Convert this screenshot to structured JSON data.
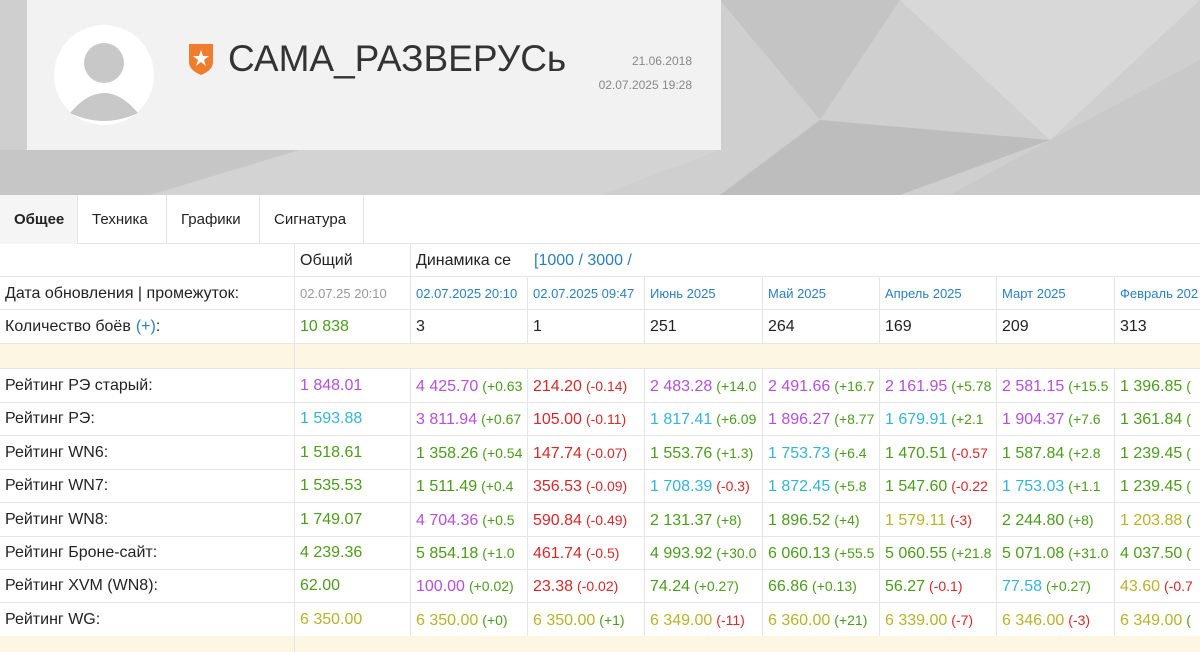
{
  "header": {
    "name": "САМА_РАЗВЕРУСь",
    "dates": [
      "21.06.2018",
      "02.07.2025 19:28"
    ]
  },
  "tabs": [
    "Общее",
    "Техника",
    "Графики",
    "Сигнатура"
  ],
  "colors": {
    "p": "#b54fdc",
    "r": "#d7282a",
    "g": "#4c9c1c",
    "c": "#35b4d8",
    "y": "#bab12a",
    "link": "#2a7fc0",
    "muted": "#999999"
  },
  "table": {
    "head": [
      "Общий",
      "Динамика се",
      "[1000 / 3000 /"
    ],
    "dates_label": "Дата обновления | промежуток:",
    "dates": [
      "02.07.25 20:10",
      "02.07.2025 20:10",
      "02.07.2025 09:47",
      "Июнь 2025",
      "Май 2025",
      "Апрель 2025",
      "Март 2025",
      "Февраль 202"
    ],
    "battles_label": "Количество боёв",
    "battles_link": "(+)",
    "battles_suffix": ":",
    "battles": [
      "10 838",
      "3",
      "1",
      "251",
      "264",
      "169",
      "209",
      "313"
    ],
    "rows": [
      {
        "label": "Рейтинг РЭ старый:",
        "cells": [
          {
            "v": "1 848.01",
            "c": "p"
          },
          {
            "v": "4 425.70",
            "c": "p",
            "d": "(+0.63",
            "dc": "g"
          },
          {
            "v": "214.20",
            "c": "r",
            "d": "(-0.14)",
            "dc": "r"
          },
          {
            "v": "2 483.28",
            "c": "p",
            "d": "(+14.0",
            "dc": "g"
          },
          {
            "v": "2 491.66",
            "c": "p",
            "d": "(+16.7",
            "dc": "g"
          },
          {
            "v": "2 161.95",
            "c": "p",
            "d": "(+5.78",
            "dc": "g"
          },
          {
            "v": "2 581.15",
            "c": "p",
            "d": "(+15.5",
            "dc": "g"
          },
          {
            "v": "1 396.85",
            "c": "g",
            "d": "(",
            "dc": "g"
          }
        ]
      },
      {
        "label": "Рейтинг РЭ:",
        "cells": [
          {
            "v": "1 593.88",
            "c": "c"
          },
          {
            "v": "3 811.94",
            "c": "p",
            "d": "(+0.67",
            "dc": "g"
          },
          {
            "v": "105.00",
            "c": "r",
            "d": "(-0.11)",
            "dc": "r"
          },
          {
            "v": "1 817.41",
            "c": "c",
            "d": "(+6.09",
            "dc": "g"
          },
          {
            "v": "1 896.27",
            "c": "p",
            "d": "(+8.77",
            "dc": "g"
          },
          {
            "v": "1 679.91",
            "c": "c",
            "d": "(+2.1",
            "dc": "g"
          },
          {
            "v": "1 904.37",
            "c": "p",
            "d": "(+7.6",
            "dc": "g"
          },
          {
            "v": "1 361.84",
            "c": "g",
            "d": "(",
            "dc": "g"
          }
        ]
      },
      {
        "label": "Рейтинг WN6:",
        "cells": [
          {
            "v": "1 518.61",
            "c": "g"
          },
          {
            "v": "1 358.26",
            "c": "g",
            "d": "(+0.54",
            "dc": "g"
          },
          {
            "v": "147.74",
            "c": "r",
            "d": "(-0.07)",
            "dc": "r"
          },
          {
            "v": "1 553.76",
            "c": "g",
            "d": "(+1.3)",
            "dc": "g"
          },
          {
            "v": "1 753.73",
            "c": "c",
            "d": "(+6.4",
            "dc": "g"
          },
          {
            "v": "1 470.51",
            "c": "g",
            "d": "(-0.57",
            "dc": "r"
          },
          {
            "v": "1 587.84",
            "c": "g",
            "d": "(+2.8",
            "dc": "g"
          },
          {
            "v": "1 239.45",
            "c": "g",
            "d": "(",
            "dc": "g"
          }
        ]
      },
      {
        "label": "Рейтинг WN7:",
        "cells": [
          {
            "v": "1 535.53",
            "c": "g"
          },
          {
            "v": "1 511.49",
            "c": "g",
            "d": "(+0.4",
            "dc": "g"
          },
          {
            "v": "356.53",
            "c": "r",
            "d": "(-0.09)",
            "dc": "r"
          },
          {
            "v": "1 708.39",
            "c": "c",
            "d": "(-0.3)",
            "dc": "r"
          },
          {
            "v": "1 872.45",
            "c": "c",
            "d": "(+5.8",
            "dc": "g"
          },
          {
            "v": "1 547.60",
            "c": "g",
            "d": "(-0.22",
            "dc": "r"
          },
          {
            "v": "1 753.03",
            "c": "c",
            "d": "(+1.1",
            "dc": "g"
          },
          {
            "v": "1 239.45",
            "c": "g",
            "d": "(",
            "dc": "g"
          }
        ]
      },
      {
        "label": "Рейтинг WN8:",
        "cells": [
          {
            "v": "1 749.07",
            "c": "g"
          },
          {
            "v": "4 704.36",
            "c": "p",
            "d": "(+0.5",
            "dc": "g"
          },
          {
            "v": "590.84",
            "c": "r",
            "d": "(-0.49)",
            "dc": "r"
          },
          {
            "v": "2 131.37",
            "c": "g",
            "d": "(+8)",
            "dc": "g"
          },
          {
            "v": "1 896.52",
            "c": "g",
            "d": "(+4)",
            "dc": "g"
          },
          {
            "v": "1 579.11",
            "c": "y",
            "d": "(-3)",
            "dc": "r"
          },
          {
            "v": "2 244.80",
            "c": "g",
            "d": "(+8)",
            "dc": "g"
          },
          {
            "v": "1 203.88",
            "c": "y",
            "d": "(",
            "dc": "g"
          }
        ]
      },
      {
        "label": "Рейтинг Броне-сайт:",
        "cells": [
          {
            "v": "4 239.36",
            "c": "g"
          },
          {
            "v": "5 854.18",
            "c": "g",
            "d": "(+1.0",
            "dc": "g"
          },
          {
            "v": "461.74",
            "c": "r",
            "d": "(-0.5)",
            "dc": "r"
          },
          {
            "v": "4 993.92",
            "c": "g",
            "d": "(+30.0",
            "dc": "g"
          },
          {
            "v": "6 060.13",
            "c": "g",
            "d": "(+55.5",
            "dc": "g"
          },
          {
            "v": "5 060.55",
            "c": "g",
            "d": "(+21.8",
            "dc": "g"
          },
          {
            "v": "5 071.08",
            "c": "g",
            "d": "(+31.0",
            "dc": "g"
          },
          {
            "v": "4 037.50",
            "c": "g",
            "d": "(",
            "dc": "g"
          }
        ]
      },
      {
        "label": "Рейтинг XVM (WN8):",
        "cells": [
          {
            "v": "62.00",
            "c": "g"
          },
          {
            "v": "100.00",
            "c": "p",
            "d": "(+0.02)",
            "dc": "g"
          },
          {
            "v": "23.38",
            "c": "r",
            "d": "(-0.02)",
            "dc": "r"
          },
          {
            "v": "74.24",
            "c": "g",
            "d": "(+0.27)",
            "dc": "g"
          },
          {
            "v": "66.86",
            "c": "g",
            "d": "(+0.13)",
            "dc": "g"
          },
          {
            "v": "56.27",
            "c": "g",
            "d": "(-0.1)",
            "dc": "r"
          },
          {
            "v": "77.58",
            "c": "c",
            "d": "(+0.27)",
            "dc": "g"
          },
          {
            "v": "43.60",
            "c": "y",
            "d": "(-0.7",
            "dc": "r"
          }
        ]
      },
      {
        "label": "Рейтинг WG:",
        "cells": [
          {
            "v": "6 350.00",
            "c": "y"
          },
          {
            "v": "6 350.00",
            "c": "y",
            "d": "(+0)",
            "dc": "g"
          },
          {
            "v": "6 350.00",
            "c": "y",
            "d": "(+1)",
            "dc": "g"
          },
          {
            "v": "6 349.00",
            "c": "y",
            "d": "(-11)",
            "dc": "r"
          },
          {
            "v": "6 360.00",
            "c": "y",
            "d": "(+21)",
            "dc": "g"
          },
          {
            "v": "6 339.00",
            "c": "y",
            "d": "(-7)",
            "dc": "r"
          },
          {
            "v": "6 346.00",
            "c": "y",
            "d": "(-3)",
            "dc": "r"
          },
          {
            "v": "6 349.00",
            "c": "y",
            "d": "(",
            "dc": "g"
          }
        ]
      }
    ]
  }
}
